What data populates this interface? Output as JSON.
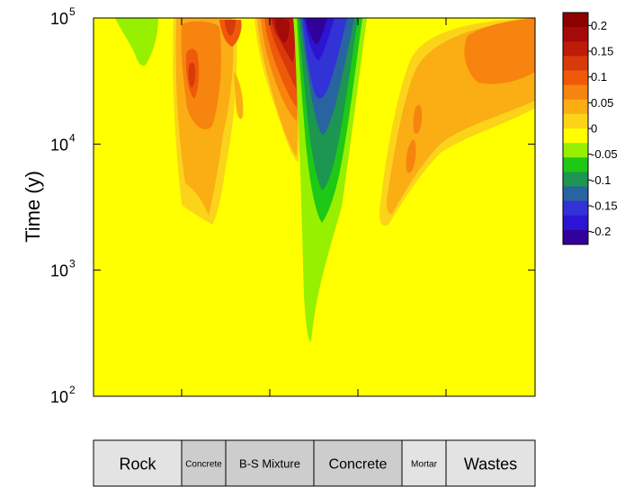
{
  "chart_data": {
    "type": "heatmap",
    "ylabel": "Time (y)",
    "y_scale": "log",
    "ylim": [
      100,
      100000
    ],
    "yticks": [
      {
        "value": 100,
        "base": "10",
        "exp": "2"
      },
      {
        "value": 1000,
        "base": "10",
        "exp": "3"
      },
      {
        "value": 10000,
        "base": "10",
        "exp": "4"
      },
      {
        "value": 100000,
        "base": "10",
        "exp": "5"
      }
    ],
    "colorbar": {
      "ticks": [
        {
          "value": 0.2,
          "label": "0.2"
        },
        {
          "value": 0.15,
          "label": "0.15"
        },
        {
          "value": 0.1,
          "label": "0.1"
        },
        {
          "value": 0.05,
          "label": "0.05"
        },
        {
          "value": 0,
          "label": "0"
        },
        {
          "value": -0.05,
          "label": "-0.05"
        },
        {
          "value": -0.1,
          "label": "-0.1"
        },
        {
          "value": -0.15,
          "label": "-0.15"
        },
        {
          "value": -0.2,
          "label": "-0.2"
        }
      ],
      "colors": [
        "#8b0000",
        "#a50a0a",
        "#bf1a0a",
        "#d93a0a",
        "#ee5a0a",
        "#f7840f",
        "#fbad14",
        "#fbd41a",
        "#ffff00",
        "#96f000",
        "#1ec814",
        "#1c9650",
        "#2864a0",
        "#3232d7",
        "#2d14d2",
        "#32009b"
      ]
    },
    "materials": [
      {
        "label": "Rock",
        "size": 18,
        "fill": "#e3e3e3"
      },
      {
        "label": "Concrete",
        "size": 10,
        "fill": "#cdcdcd"
      },
      {
        "label": "B-S Mixture",
        "size": 13,
        "fill": "#cdcdcd"
      },
      {
        "label": "Concrete",
        "size": 16,
        "fill": "#cdcdcd"
      },
      {
        "label": "Mortar",
        "size": 10,
        "fill": "#e3e3e3"
      },
      {
        "label": "Wastes",
        "size": 18,
        "fill": "#e3e3e3"
      }
    ]
  }
}
